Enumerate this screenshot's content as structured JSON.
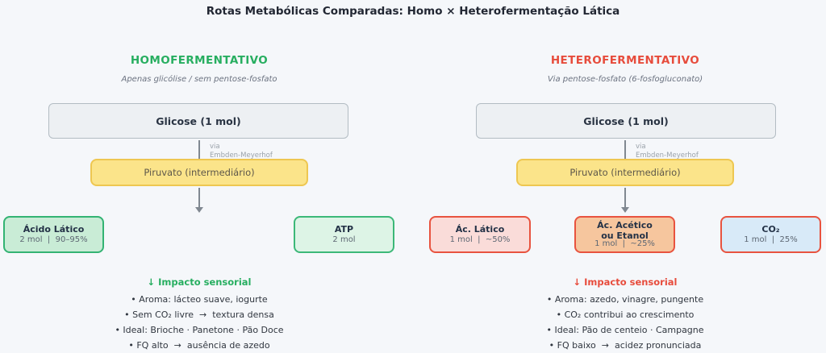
{
  "title": "Rotas Metabólicas Comparadas: Homo × Heterofermentação Lática",
  "colors": {
    "background": "#f5f7fa",
    "homo_accent": "#27ae60",
    "hetero_accent": "#e74c3c",
    "glucose_box_bg": "#edf0f3",
    "pyruvate_box_bg": "#fbe48a",
    "acido_latico_bg": "#c9ecd6",
    "atp_bg": "#ddf4e6",
    "ac_latico_bg": "#fadcd9",
    "ac_acetico_bg": "#f6c69e",
    "co2_bg": "#d8eaf8",
    "green_border": "#33b373",
    "red_border": "#e8533f",
    "arrow": "#808891"
  },
  "columns": [
    {
      "header": "HOMOFERMENTATIVO",
      "subtitle": "Apenas glicólise / sem pentose-fosfato",
      "glucose": "Glicose (1 mol)",
      "via": "via\nEmbden-Meyerhof",
      "pyruvate": "Piruvato (intermediário)",
      "products": [
        {
          "name": "Ácido Lático",
          "detail": "2 mol  |  90–95%"
        },
        {
          "name": "ATP",
          "detail": "2 mol"
        }
      ],
      "sensory": {
        "heading": "↓ Impacto sensorial",
        "items": [
          "• Aroma: lácteo suave, iogurte",
          "• Sem CO₂ livre  →  textura densa",
          "• Ideal: Brioche · Panetone · Pão Doce",
          "• FQ alto  →  ausência de azedo"
        ]
      }
    },
    {
      "header": "HETEROFERMENTATIVO",
      "subtitle": "Via pentose-fosfato (6-fosfogluconato)",
      "glucose": "Glicose (1 mol)",
      "via": "via\nEmbden-Meyerhof",
      "pyruvate": "Piruvato (intermediário)",
      "products": [
        {
          "name": "Ác. Lático",
          "detail": "1 mol  |  ~50%"
        },
        {
          "name": "Ác. Acético\nou Etanol",
          "detail": "1 mol  |  ~25%"
        },
        {
          "name": "CO₂",
          "detail": "1 mol  |  25%"
        }
      ],
      "sensory": {
        "heading": "↓ Impacto sensorial",
        "items": [
          "• Aroma: azedo, vinagre, pungente",
          "• CO₂ contribui ao crescimento",
          "• Ideal: Pão de centeio · Campagne",
          "• FQ baixo  →  acidez pronunciada"
        ]
      }
    }
  ]
}
